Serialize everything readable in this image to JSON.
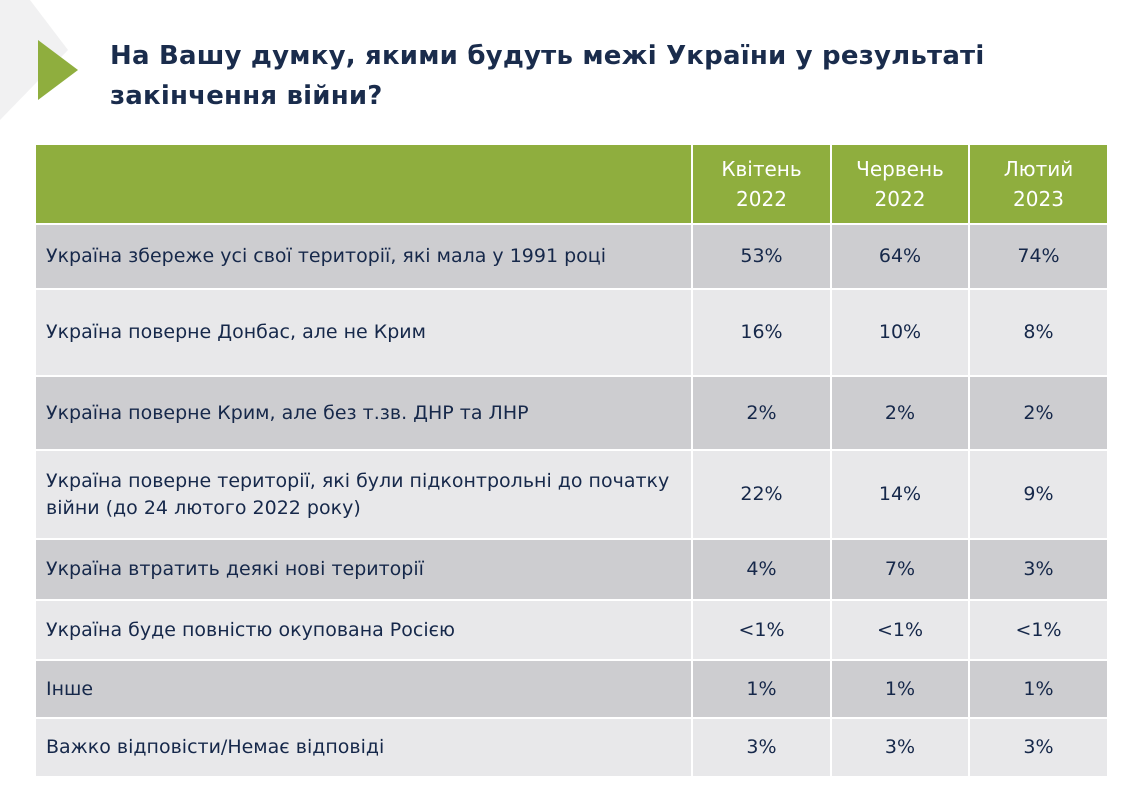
{
  "title": "На Вашу думку, якими будуть межі України у результаті закінчення війни?",
  "colors": {
    "accent": "#8fae3e",
    "text": "#1a2c4c",
    "row_dark": "#cdcdd0",
    "row_light": "#e8e8ea"
  },
  "table": {
    "headers": [
      {
        "month": "Квітень",
        "year": "2022"
      },
      {
        "month": "Червень",
        "year": "2022"
      },
      {
        "month": "Лютий",
        "year": "2023"
      }
    ],
    "rows": [
      {
        "label": "Україна збереже усі свої території, які мала у 1991 році",
        "values": [
          "53%",
          "64%",
          "74%"
        ]
      },
      {
        "label": "Україна поверне Донбас, але не Крим",
        "values": [
          "16%",
          "10%",
          "8%"
        ]
      },
      {
        "label": "Україна поверне Крим, але без т.зв. ДНР та ЛНР",
        "values": [
          "2%",
          "2%",
          "2%"
        ]
      },
      {
        "label": "Україна поверне території, які були підконтрольні до початку війни (до 24 лютого 2022 року)",
        "values": [
          "22%",
          "14%",
          "9%"
        ]
      },
      {
        "label": "Україна втратить деякі нові території",
        "values": [
          "4%",
          "7%",
          "3%"
        ]
      },
      {
        "label": "Україна буде повністю окупована Росією",
        "values": [
          "<1%",
          "<1%",
          "<1%"
        ]
      },
      {
        "label": "Інше",
        "values": [
          "1%",
          "1%",
          "1%"
        ]
      },
      {
        "label": "Важко відповісти/Немає відповіді",
        "values": [
          "3%",
          "3%",
          "3%"
        ]
      }
    ]
  }
}
